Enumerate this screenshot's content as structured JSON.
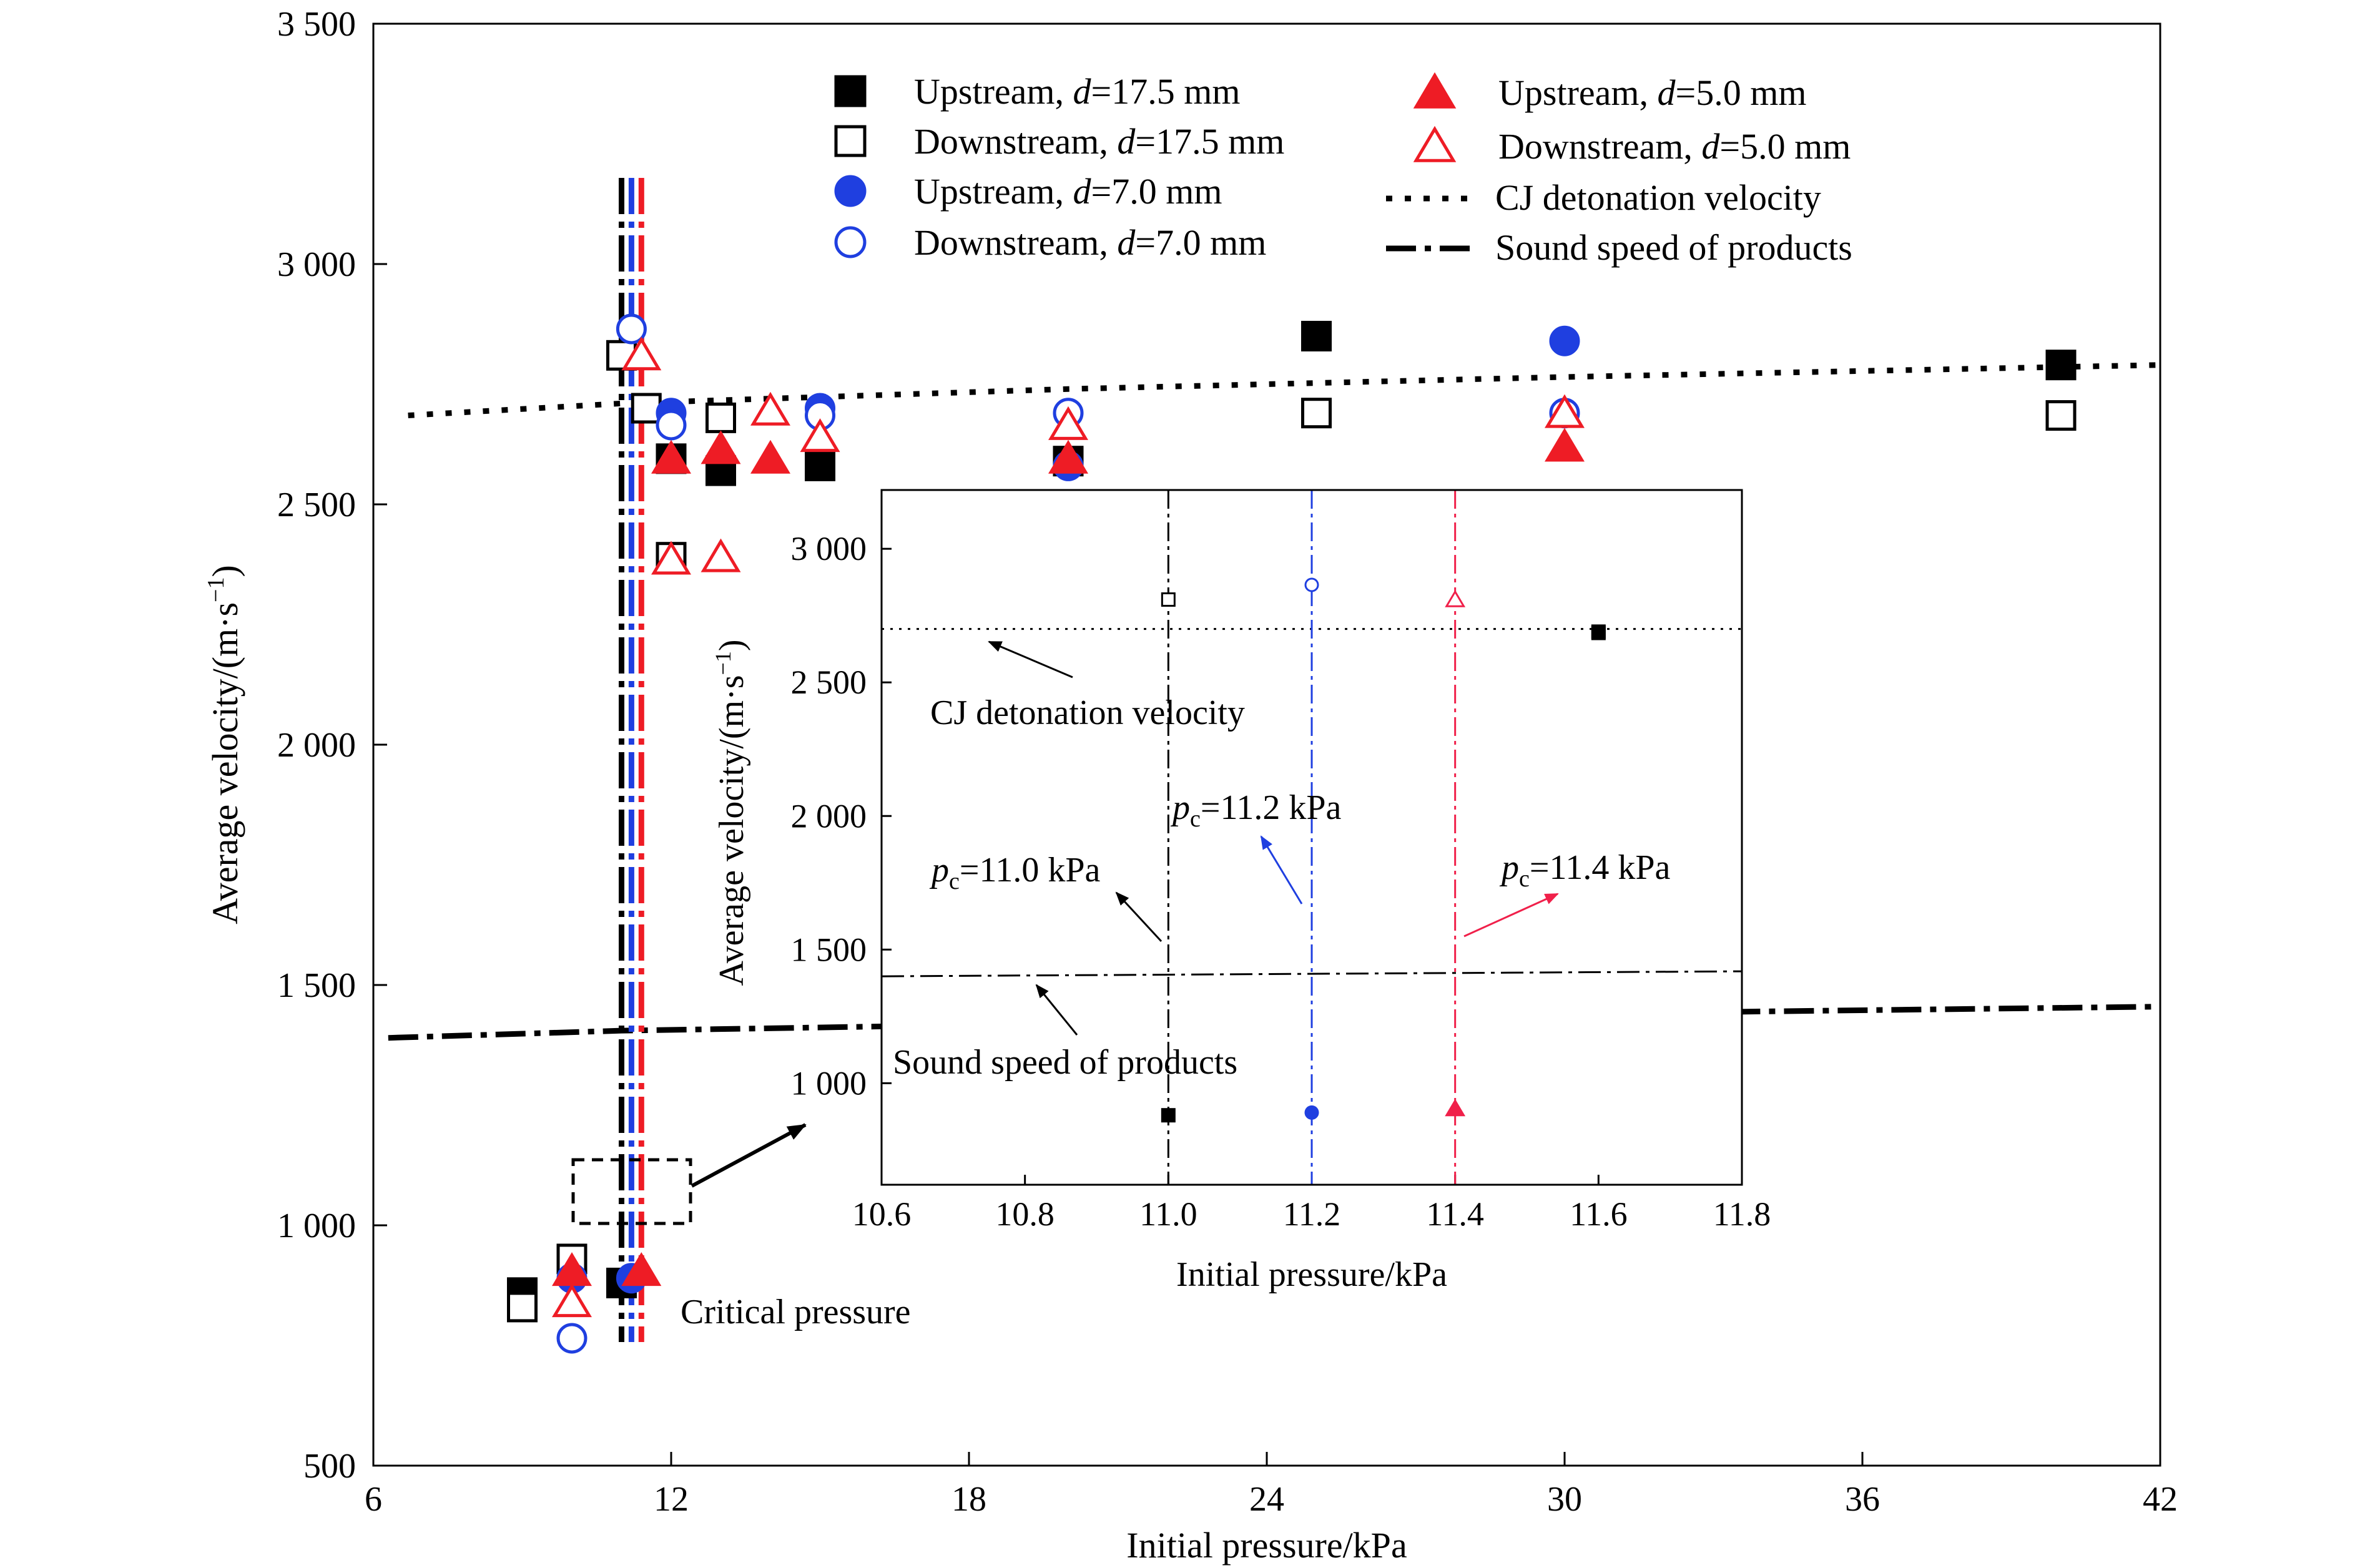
{
  "chart_data": {
    "type": "scatter",
    "title": "",
    "xlabel": "Initial pressure/kPa",
    "ylabel_main": "Average velocity/(m·s",
    "ylabel_sup": "−1",
    "ylabel_end": ")",
    "xlim": [
      6,
      42
    ],
    "ylim": [
      500,
      3500
    ],
    "xticks": [
      6,
      12,
      18,
      24,
      30,
      36,
      42
    ],
    "xtick_labels": [
      "6",
      "12",
      "18",
      "24",
      "30",
      "36",
      "42"
    ],
    "yticks": [
      500,
      1000,
      1500,
      2000,
      2500,
      3000,
      3500
    ],
    "ytick_labels": [
      "500",
      "1 000",
      "1 500",
      "2 000",
      "2 500",
      "3 000",
      "3 500"
    ],
    "colors": {
      "black": "#000000",
      "blue": "#1f3fe0",
      "red": "#ee1c25",
      "inset_red": "#f0204a"
    },
    "series": [
      {
        "name": "Upstream, d=17.5 mm",
        "label_pre": "Upstream, ",
        "label_var": "d",
        "label_post": "=17.5 mm",
        "marker": "square",
        "filled": true,
        "color": "#000000",
        "points": [
          [
            9.0,
            860
          ],
          [
            11.0,
            880
          ],
          [
            12.0,
            2595
          ],
          [
            13.0,
            2570
          ],
          [
            15.0,
            2580
          ],
          [
            20.0,
            2590
          ],
          [
            25.0,
            2850
          ],
          [
            40.0,
            2790
          ]
        ]
      },
      {
        "name": "Downstream, d=17.5 mm",
        "label_pre": "Downstream, ",
        "label_var": "d",
        "label_post": "=17.5 mm",
        "marker": "square",
        "filled": false,
        "color": "#000000",
        "points": [
          [
            9.0,
            830
          ],
          [
            10.0,
            930
          ],
          [
            11.0,
            2810
          ],
          [
            11.5,
            2700
          ],
          [
            12.0,
            2390
          ],
          [
            13.0,
            2680
          ],
          [
            25.0,
            2690
          ],
          [
            40.0,
            2685
          ]
        ]
      },
      {
        "name": "Upstream, d=7.0 mm",
        "label_pre": "Upstream, ",
        "label_var": "d",
        "label_post": "=7.0 mm",
        "marker": "circle",
        "filled": true,
        "color": "#1f3fe0",
        "points": [
          [
            10.0,
            890
          ],
          [
            11.2,
            890
          ],
          [
            12.0,
            2690
          ],
          [
            15.0,
            2700
          ],
          [
            20.0,
            2580
          ],
          [
            30.0,
            2840
          ]
        ]
      },
      {
        "name": "Downstream, d=7.0 mm",
        "label_pre": "Downstream, ",
        "label_var": "d",
        "label_post": "=7.0 mm",
        "marker": "circle",
        "filled": false,
        "color": "#1f3fe0",
        "points": [
          [
            10.0,
            765
          ],
          [
            11.2,
            2865
          ],
          [
            12.0,
            2665
          ],
          [
            15.0,
            2685
          ],
          [
            20.0,
            2690
          ],
          [
            30.0,
            2690
          ]
        ]
      },
      {
        "name": "Upstream, d=5.0 mm",
        "label_pre": "Upstream, ",
        "label_var": "d",
        "label_post": "=5.0 mm",
        "marker": "triangle",
        "filled": true,
        "color": "#ee1c25",
        "points": [
          [
            10.0,
            905
          ],
          [
            11.4,
            905
          ],
          [
            12.0,
            2595
          ],
          [
            13.0,
            2615
          ],
          [
            14.0,
            2595
          ],
          [
            20.0,
            2595
          ],
          [
            30.0,
            2620
          ]
        ]
      },
      {
        "name": "Downstream, d=5.0 mm",
        "label_pre": "Downstream, ",
        "label_var": "d",
        "label_post": "=5.0 mm",
        "marker": "triangle",
        "filled": false,
        "color": "#ee1c25",
        "points": [
          [
            10.0,
            840
          ],
          [
            11.4,
            2810
          ],
          [
            12.0,
            2385
          ],
          [
            13.0,
            2390
          ],
          [
            14.0,
            2695
          ],
          [
            15.0,
            2640
          ],
          [
            20.0,
            2665
          ],
          [
            30.0,
            2690
          ]
        ]
      }
    ],
    "lines": [
      {
        "name": "CJ detonation velocity",
        "style": "dotted",
        "color": "#000000",
        "points": [
          [
            6.7,
            2685
          ],
          [
            11.0,
            2710
          ],
          [
            20.0,
            2740
          ],
          [
            30.0,
            2765
          ],
          [
            42.0,
            2790
          ]
        ]
      },
      {
        "name": "Sound speed of products",
        "style": "dashdot",
        "color": "#000000",
        "points": [
          [
            6.3,
            1390
          ],
          [
            11.0,
            1405
          ],
          [
            20.0,
            1420
          ],
          [
            30.0,
            1440
          ],
          [
            42.0,
            1455
          ]
        ]
      }
    ],
    "critical_lines": [
      {
        "x": 11.0,
        "color": "#000000"
      },
      {
        "x": 11.2,
        "color": "#1f3fe0"
      },
      {
        "x": 11.4,
        "color": "#ee1c25"
      }
    ],
    "critical_label": "Critical pressure",
    "inset": {
      "xlabel": "Initial pressure/kPa",
      "ylabel_main": "Average velocity/(m·s",
      "ylabel_sup": "−1",
      "ylabel_end": ")",
      "xlim": [
        10.6,
        11.8
      ],
      "ylim": [
        620,
        3220
      ],
      "xticks": [
        10.6,
        10.8,
        11.0,
        11.2,
        11.4,
        11.6,
        11.8
      ],
      "xtick_labels": [
        "10.6",
        "10.8",
        "11.0",
        "11.2",
        "11.4",
        "11.6",
        "11.8"
      ],
      "yticks": [
        1000,
        1500,
        2000,
        2500,
        3000
      ],
      "ytick_labels": [
        "1 000",
        "1 500",
        "2 000",
        "2 500",
        "3 000"
      ],
      "cj_velocity": 2700,
      "sound_speed": 1400,
      "points": [
        {
          "x": 11.0,
          "y": 2810,
          "marker": "square",
          "filled": false,
          "color": "#000000"
        },
        {
          "x": 11.0,
          "y": 880,
          "marker": "square",
          "filled": true,
          "color": "#000000"
        },
        {
          "x": 11.2,
          "y": 2865,
          "marker": "circle",
          "filled": false,
          "color": "#1f3fe0"
        },
        {
          "x": 11.2,
          "y": 890,
          "marker": "circle",
          "filled": true,
          "color": "#1f3fe0"
        },
        {
          "x": 11.4,
          "y": 2810,
          "marker": "triangle",
          "filled": false,
          "color": "#f0204a"
        },
        {
          "x": 11.4,
          "y": 905,
          "marker": "triangle",
          "filled": true,
          "color": "#f0204a"
        },
        {
          "x": 11.6,
          "y": 2690,
          "marker": "square",
          "filled": false,
          "color": "#000000"
        },
        {
          "x": 11.6,
          "y": 2685,
          "marker": "square",
          "filled": true,
          "color": "#000000"
        }
      ],
      "annotations": {
        "cj_label": "CJ detonation velocity",
        "sound_label": "Sound speed of products",
        "pc_var": "p",
        "pc_sub": "c",
        "pc_black_value": "=11.0 kPa",
        "pc_blue_value": "=11.2 kPa",
        "pc_red_value": "=11.4 kPa"
      }
    }
  }
}
